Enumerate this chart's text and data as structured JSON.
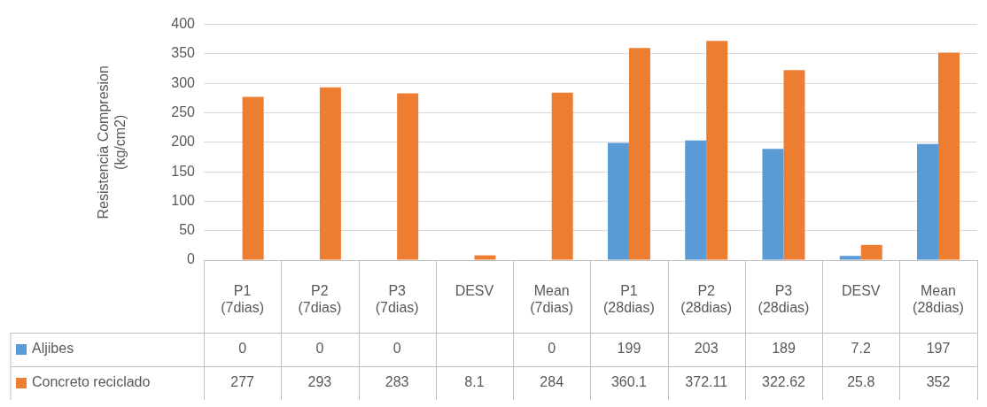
{
  "chart_data": {
    "type": "bar",
    "ylabel": "Resistencia Compresion (kg/cm2)",
    "categories": [
      "P1 (7dias)",
      "P2 (7dias)",
      "P3 (7dias)",
      "DESV",
      "Mean (7dias)",
      "P1 (28dias)",
      "P2 (28dias)",
      "P3 (28dias)",
      "DESV",
      "Mean (28dias)"
    ],
    "series": [
      {
        "name": "Aljibes",
        "color": "#5b9bd5",
        "values": [
          0,
          0,
          0,
          null,
          0,
          199,
          203,
          189,
          7.2,
          197
        ]
      },
      {
        "name": "Concreto reciclado",
        "color": "#ed7d31",
        "values": [
          277,
          293,
          283,
          8.1,
          284,
          360.1,
          372.11,
          322.62,
          25.8,
          352
        ]
      }
    ],
    "ylim": [
      0,
      400
    ],
    "yticks": [
      0,
      50,
      100,
      150,
      200,
      250,
      300,
      350,
      400
    ],
    "grid": "y",
    "legend": "bottom",
    "data_labels": true
  }
}
